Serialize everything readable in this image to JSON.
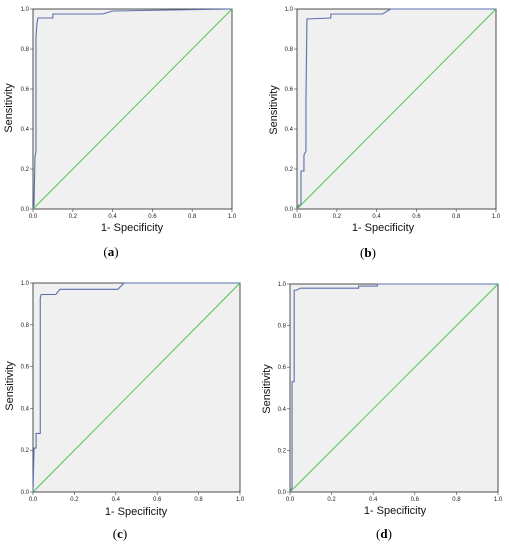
{
  "chart_data": [
    {
      "type": "line",
      "panel": "(a)",
      "panel_letter": "a",
      "xlabel": "1- Specificity",
      "ylabel": "Sensitivity",
      "xlim": [
        0,
        1
      ],
      "ylim": [
        0,
        1
      ],
      "xticks": [
        "0.0",
        "0.2",
        "0.4",
        "0.6",
        "0.8",
        "1.0"
      ],
      "yticks": [
        "0.0",
        "0.2",
        "0.4",
        "0.6",
        "0.8",
        "1.0"
      ],
      "grid": false,
      "colors": {
        "curve": "#5b6fb0",
        "reference": "#44c544",
        "background": "#f0f0f0"
      },
      "series": [
        {
          "role": "roc",
          "points": [
            [
              0,
              0
            ],
            [
              0.005,
              0.02
            ],
            [
              0.01,
              0.26
            ],
            [
              0.015,
              0.29
            ],
            [
              0.015,
              0.86
            ],
            [
              0.02,
              0.93
            ],
            [
              0.025,
              0.955
            ],
            [
              0.1,
              0.955
            ],
            [
              0.1,
              0.975
            ],
            [
              0.35,
              0.975
            ],
            [
              0.4,
              0.99
            ],
            [
              1,
              1
            ]
          ]
        },
        {
          "role": "reference",
          "points": [
            [
              0,
              0
            ],
            [
              1,
              1
            ]
          ]
        }
      ]
    },
    {
      "type": "line",
      "panel": "(b)",
      "panel_letter": "b",
      "xlabel": "1- Specificity",
      "ylabel": "Sensitivity",
      "xlim": [
        0,
        1
      ],
      "ylim": [
        0,
        1
      ],
      "xticks": [
        "0.0",
        "0.2",
        "0.4",
        "0.6",
        "0.8",
        "1.0"
      ],
      "yticks": [
        "0.0",
        "0.2",
        "0.4",
        "0.6",
        "0.8",
        "1.0"
      ],
      "grid": false,
      "colors": {
        "curve": "#5b6fb0",
        "reference": "#44c544",
        "background": "#f0f0f0"
      },
      "series": [
        {
          "role": "roc",
          "points": [
            [
              0,
              0
            ],
            [
              0.01,
              0.02
            ],
            [
              0.02,
              0.02
            ],
            [
              0.02,
              0.19
            ],
            [
              0.035,
              0.19
            ],
            [
              0.035,
              0.27
            ],
            [
              0.045,
              0.29
            ],
            [
              0.045,
              0.55
            ],
            [
              0.05,
              0.95
            ],
            [
              0.17,
              0.955
            ],
            [
              0.17,
              0.975
            ],
            [
              0.43,
              0.975
            ],
            [
              0.47,
              1
            ],
            [
              1,
              1
            ]
          ]
        },
        {
          "role": "reference",
          "points": [
            [
              0,
              0
            ],
            [
              1,
              1
            ]
          ]
        }
      ]
    },
    {
      "type": "line",
      "panel": "(c)",
      "panel_letter": "c",
      "xlabel": "1- Specificity",
      "ylabel": "Sensitivity",
      "xlim": [
        0,
        1
      ],
      "ylim": [
        0,
        1
      ],
      "xticks": [
        "0.0",
        "0.2",
        "0.4",
        "0.6",
        "0.8",
        "1.0"
      ],
      "yticks": [
        "0.0",
        "0.2",
        "0.4",
        "0.6",
        "0.8",
        "1.0"
      ],
      "grid": false,
      "colors": {
        "curve": "#5b6fb0",
        "reference": "#44c544",
        "background": "#f0f0f0"
      },
      "series": [
        {
          "role": "roc",
          "points": [
            [
              0,
              0
            ],
            [
              0.005,
              0.21
            ],
            [
              0.015,
              0.21
            ],
            [
              0.015,
              0.28
            ],
            [
              0.035,
              0.28
            ],
            [
              0.035,
              0.93
            ],
            [
              0.04,
              0.945
            ],
            [
              0.11,
              0.945
            ],
            [
              0.13,
              0.97
            ],
            [
              0.41,
              0.97
            ],
            [
              0.44,
              1
            ],
            [
              1,
              1
            ]
          ]
        },
        {
          "role": "reference",
          "points": [
            [
              0,
              0
            ],
            [
              1,
              1
            ]
          ]
        }
      ]
    },
    {
      "type": "line",
      "panel": "(d)",
      "panel_letter": "d",
      "xlabel": "1- Specificity",
      "ylabel": "Sensitivity",
      "xlim": [
        0,
        1
      ],
      "ylim": [
        0,
        1
      ],
      "xticks": [
        "0.0",
        "0.2",
        "0.4",
        "0.6",
        "0.8",
        "1.0"
      ],
      "yticks": [
        "0.0",
        "0.2",
        "0.4",
        "0.6",
        "0.8",
        "1.0"
      ],
      "grid": false,
      "colors": {
        "curve": "#5b6fb0",
        "reference": "#44c544",
        "background": "#f0f0f0"
      },
      "series": [
        {
          "role": "roc",
          "points": [
            [
              0,
              0
            ],
            [
              0.01,
              0.02
            ],
            [
              0.01,
              0.53
            ],
            [
              0.02,
              0.53
            ],
            [
              0.02,
              0.97
            ],
            [
              0.03,
              0.97
            ],
            [
              0.05,
              0.98
            ],
            [
              0.33,
              0.98
            ],
            [
              0.33,
              0.99
            ],
            [
              0.42,
              0.99
            ],
            [
              0.42,
              1
            ],
            [
              1,
              1
            ]
          ]
        },
        {
          "role": "reference",
          "points": [
            [
              0,
              0
            ],
            [
              1,
              1
            ]
          ]
        }
      ]
    }
  ]
}
